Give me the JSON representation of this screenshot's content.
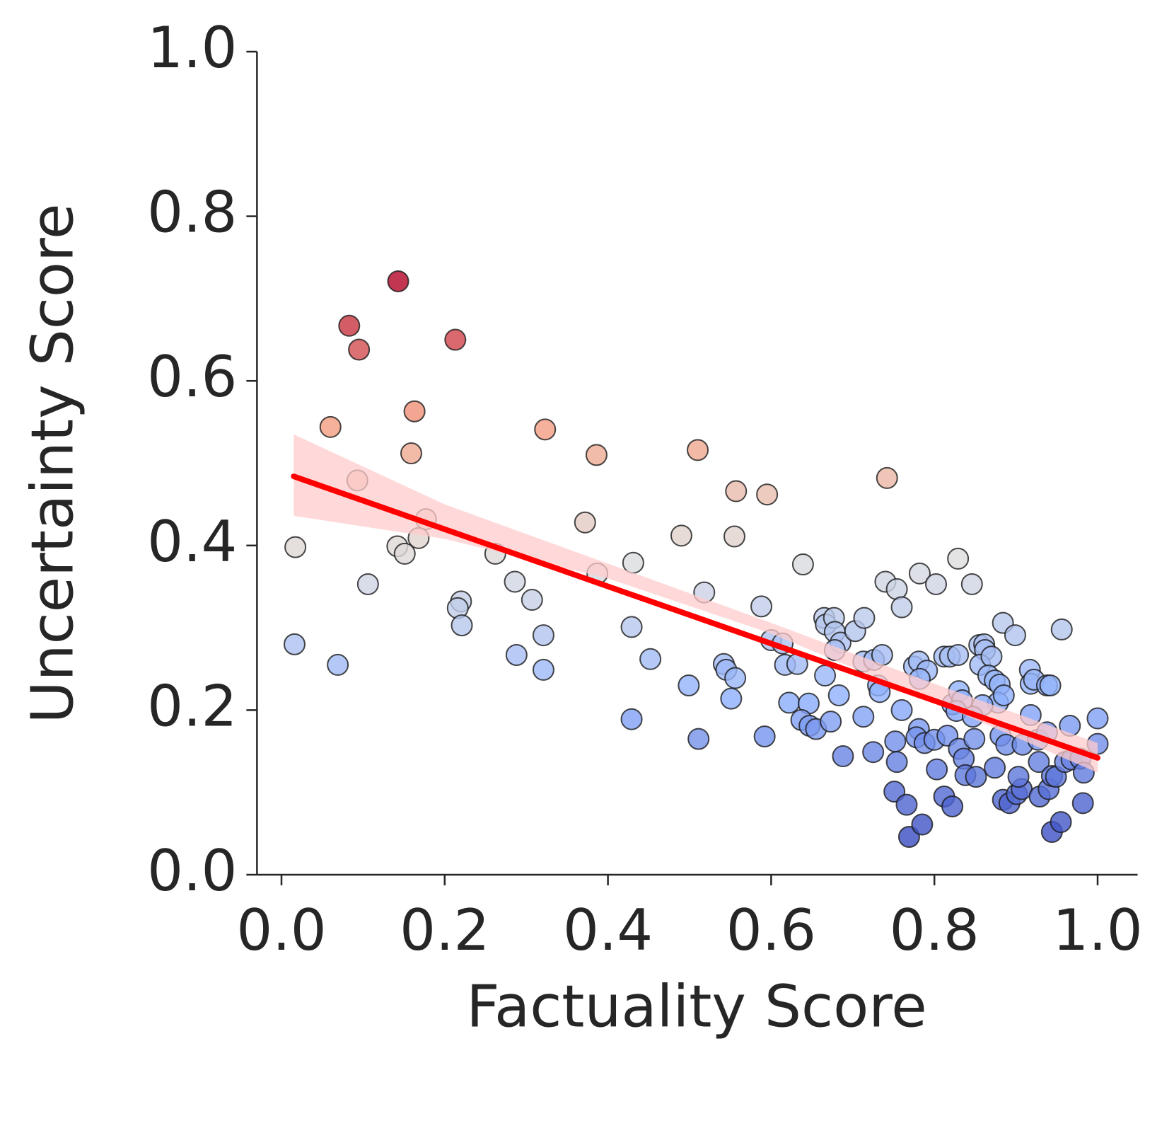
{
  "chart_data": {
    "type": "scatter",
    "xlabel": "Factuality Score",
    "ylabel": "Uncertainty Score",
    "xlim": [
      -0.03,
      1.049
    ],
    "ylim": [
      0,
      1.0
    ],
    "xticks": [
      {
        "value": 0,
        "label": "0.0"
      },
      0.2,
      0.4,
      0.6,
      0.8,
      {
        "value": 1,
        "label": "1.0"
      }
    ],
    "yticks": [
      {
        "value": 0,
        "label": "0.0"
      },
      0.2,
      0.4,
      0.6,
      0.8,
      {
        "value": 1,
        "label": "1.0"
      }
    ],
    "colormap": "coolwarm",
    "x": [
      0.143,
      0.083,
      0.095,
      0.213,
      0.06,
      0.163,
      0.159,
      0.093,
      0.323,
      0.386,
      0.51,
      0.742,
      0.557,
      0.595,
      0.177,
      0.168,
      0.372,
      0.49,
      0.555,
      0.017,
      0.142,
      0.151,
      0.262,
      0.431,
      0.387,
      0.639,
      0.829,
      0.106,
      0.286,
      0.307,
      0.22,
      0.216,
      0.221,
      0.518,
      0.588,
      0.74,
      0.754,
      0.76,
      0.782,
      0.802,
      0.846,
      0.016,
      0.069,
      0.288,
      0.321,
      0.321,
      0.429,
      0.452,
      0.429,
      0.499,
      0.511,
      0.542,
      0.545,
      0.556,
      0.551,
      0.592,
      0.6,
      0.614,
      0.617,
      0.632,
      0.622,
      0.646,
      0.637,
      0.647,
      0.655,
      0.665,
      0.667,
      0.677,
      0.678,
      0.685,
      0.678,
      0.703,
      0.714,
      0.666,
      0.683,
      0.673,
      0.688,
      0.713,
      0.726,
      0.736,
      0.731,
      0.733,
      0.713,
      0.725,
      0.76,
      0.752,
      0.754,
      0.751,
      0.766,
      0.769,
      0.785,
      0.775,
      0.781,
      0.791,
      0.782,
      0.781,
      0.778,
      0.788,
      0.8,
      0.803,
      0.812,
      0.819,
      0.829,
      0.822,
      0.83,
      0.834,
      0.827,
      0.816,
      0.83,
      0.836,
      0.838,
      0.812,
      0.822,
      0.851,
      0.855,
      0.861,
      0.862,
      0.856,
      0.87,
      0.866,
      0.874,
      0.88,
      0.878,
      0.885,
      0.859,
      0.847,
      0.849,
      0.884,
      0.899,
      0.881,
      0.888,
      0.874,
      0.884,
      0.892,
      0.901,
      0.907,
      0.903,
      0.908,
      0.918,
      0.917,
      0.918,
      0.922,
      0.938,
      0.942,
      0.927,
      0.928,
      0.938,
      0.929,
      0.94,
      0.944,
      0.949,
      0.944,
      0.955,
      0.956,
      0.966,
      0.96,
      0.968,
      0.979,
      0.983,
      0.982,
      1.0,
      1.0
    ],
    "values": [
      0.721,
      0.667,
      0.638,
      0.65,
      0.544,
      0.563,
      0.512,
      0.479,
      0.541,
      0.51,
      0.516,
      0.482,
      0.466,
      0.462,
      0.432,
      0.409,
      0.428,
      0.412,
      0.411,
      0.398,
      0.399,
      0.39,
      0.39,
      0.379,
      0.366,
      0.377,
      0.384,
      0.353,
      0.356,
      0.334,
      0.332,
      0.324,
      0.303,
      0.343,
      0.326,
      0.356,
      0.347,
      0.325,
      0.366,
      0.353,
      0.353,
      0.28,
      0.255,
      0.267,
      0.291,
      0.249,
      0.301,
      0.262,
      0.189,
      0.23,
      0.165,
      0.256,
      0.249,
      0.239,
      0.214,
      0.168,
      0.285,
      0.281,
      0.255,
      0.256,
      0.209,
      0.208,
      0.188,
      0.181,
      0.177,
      0.312,
      0.304,
      0.312,
      0.295,
      0.282,
      0.273,
      0.296,
      0.312,
      0.242,
      0.218,
      0.186,
      0.144,
      0.259,
      0.261,
      0.267,
      0.23,
      0.222,
      0.192,
      0.149,
      0.2,
      0.162,
      0.137,
      0.101,
      0.085,
      0.046,
      0.061,
      0.253,
      0.259,
      0.248,
      0.238,
      0.177,
      0.167,
      0.16,
      0.164,
      0.128,
      0.265,
      0.265,
      0.267,
      0.207,
      0.223,
      0.212,
      0.199,
      0.169,
      0.153,
      0.141,
      0.121,
      0.095,
      0.083,
      0.119,
      0.279,
      0.28,
      0.273,
      0.255,
      0.265,
      0.242,
      0.236,
      0.231,
      0.209,
      0.218,
      0.206,
      0.192,
      0.165,
      0.306,
      0.291,
      0.169,
      0.158,
      0.13,
      0.091,
      0.087,
      0.098,
      0.104,
      0.119,
      0.158,
      0.194,
      0.249,
      0.232,
      0.237,
      0.23,
      0.23,
      0.164,
      0.137,
      0.173,
      0.095,
      0.104,
      0.12,
      0.119,
      0.052,
      0.064,
      0.298,
      0.181,
      0.137,
      0.14,
      0.141,
      0.124,
      0.087,
      0.19,
      0.159
    ],
    "trendline": {
      "color": "#ff0000",
      "band_color": "#ffcccc",
      "x": [
        0.015,
        1.0
      ],
      "values": [
        0.484,
        0.142
      ],
      "band_x": [
        0.015,
        0.2,
        0.4,
        0.6,
        0.8,
        1.0
      ],
      "band_lower": [
        0.436,
        0.408,
        0.36,
        0.293,
        0.21,
        0.124
      ],
      "band_upper": [
        0.535,
        0.45,
        0.378,
        0.306,
        0.232,
        0.16
      ]
    }
  }
}
